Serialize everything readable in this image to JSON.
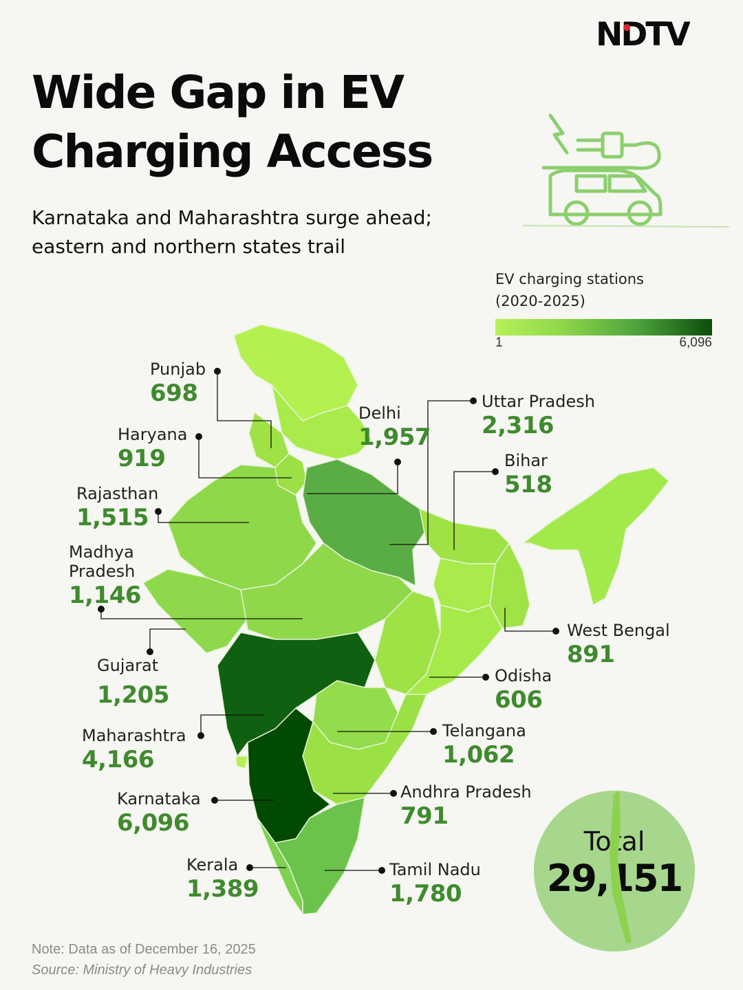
{
  "brand": {
    "logo_text": "NDTV"
  },
  "header": {
    "title_line1": "Wide Gap in EV",
    "title_line2": "Charging Access",
    "subtitle_line1": "Karnataka and Maharashtra surge ahead;",
    "subtitle_line2": "eastern and northern states trail"
  },
  "legend": {
    "title_line1": "EV charging stations",
    "title_line2": "(2020-2025)",
    "min_label": "1",
    "max_label": "6,096",
    "min_color": "#b7f05a",
    "max_color": "#0d4d0d"
  },
  "icons": {
    "header_icon": "ev-car-plug-icon"
  },
  "states": [
    {
      "name": "Punjab",
      "value": "698"
    },
    {
      "name": "Haryana",
      "value": "919"
    },
    {
      "name": "Rajasthan",
      "value": "1,515"
    },
    {
      "name_line1": "Madhya",
      "name_line2": "Pradesh",
      "value": "1,146"
    },
    {
      "name": "Gujarat",
      "value": "1,205"
    },
    {
      "name": "Maharashtra",
      "value": "4,166"
    },
    {
      "name": "Karnataka",
      "value": "6,096"
    },
    {
      "name": "Kerala",
      "value": "1,389"
    },
    {
      "name": "Delhi",
      "value": "1,957"
    },
    {
      "name": "Uttar Pradesh",
      "value": "2,316"
    },
    {
      "name": "Bihar",
      "value": "518"
    },
    {
      "name": "West Bengal",
      "value": "891"
    },
    {
      "name": "Odisha",
      "value": "606"
    },
    {
      "name": "Telangana",
      "value": "1,062"
    },
    {
      "name": "Andhra Pradesh",
      "value": "791"
    },
    {
      "name": "Tamil Nadu",
      "value": "1,780"
    }
  ],
  "total": {
    "label": "Total",
    "value": "29,151"
  },
  "footer": {
    "note": "Note: Data as of December 16, 2025",
    "source": "Source: Ministry of Heavy Industries"
  }
}
